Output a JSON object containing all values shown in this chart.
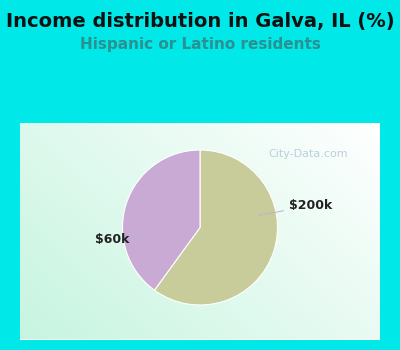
{
  "title": "Income distribution in Galva, IL (%)",
  "subtitle": "Hispanic or Latino residents",
  "background_color": "#00e8e8",
  "chart_bg_top": "#f0f8f0",
  "chart_bg_bottom": "#c8eedd",
  "slices": [
    {
      "label": "$60k",
      "value": 60,
      "color": "#c8cc9a"
    },
    {
      "label": "$200k",
      "value": 40,
      "color": "#c8aad4"
    }
  ],
  "title_fontsize": 14,
  "subtitle_fontsize": 11,
  "subtitle_color": "#2a9090",
  "title_color": "#111111",
  "watermark": "City-Data.com",
  "watermark_color": "#b0c8d8",
  "label_color": "#222222",
  "label_fontsize": 9,
  "line_color": "#b0b8cc",
  "start_angle": 90
}
